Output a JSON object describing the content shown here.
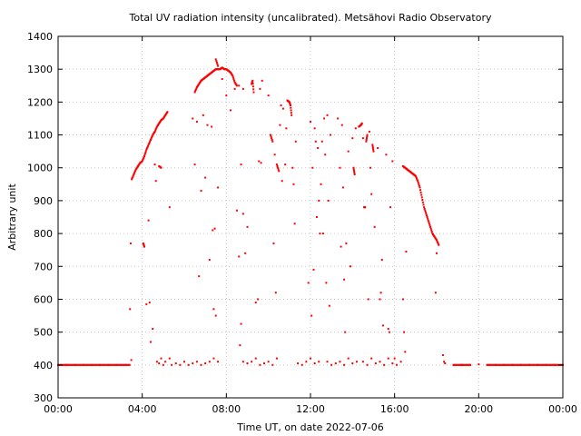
{
  "chart_data": {
    "type": "scatter",
    "title": "Total UV radiation intensity (uncalibrated). Metsähovi Radio Observatory",
    "xlabel": "Time UT, on date 2022-07-06",
    "ylabel": "Arbitrary unit",
    "xlim": [
      0,
      24
    ],
    "ylim": [
      300,
      1400
    ],
    "x_ticks": [
      {
        "value": 0,
        "label": "00:00"
      },
      {
        "value": 4,
        "label": "04:00"
      },
      {
        "value": 8,
        "label": "08:00"
      },
      {
        "value": 12,
        "label": "12:00"
      },
      {
        "value": 16,
        "label": "16:00"
      },
      {
        "value": 20,
        "label": "20:00"
      },
      {
        "value": 24,
        "label": "00:00"
      }
    ],
    "y_ticks": [
      {
        "value": 300,
        "label": "300"
      },
      {
        "value": 400,
        "label": "400"
      },
      {
        "value": 500,
        "label": "500"
      },
      {
        "value": 600,
        "label": "600"
      },
      {
        "value": 700,
        "label": "700"
      },
      {
        "value": 800,
        "label": "800"
      },
      {
        "value": 900,
        "label": "900"
      },
      {
        "value": 1000,
        "label": "1000"
      },
      {
        "value": 1100,
        "label": "1100"
      },
      {
        "value": 1200,
        "label": "1200"
      },
      {
        "value": 1300,
        "label": "1300"
      },
      {
        "value": 1400,
        "label": "1400"
      }
    ],
    "grid": true,
    "marker_color": "#ff0000",
    "series": [
      {
        "points": [
          [
            0.0,
            400
          ],
          [
            0.4,
            400
          ],
          [
            0.8,
            400
          ],
          [
            1.2,
            400
          ],
          [
            1.6,
            400
          ],
          [
            2.0,
            400
          ],
          [
            2.4,
            400
          ],
          [
            2.8,
            400
          ],
          [
            3.2,
            400
          ],
          [
            3.4,
            400
          ],
          [
            3.45,
            770
          ],
          [
            3.42,
            570
          ],
          [
            3.48,
            415
          ],
          [
            3.5,
            965
          ],
          [
            3.6,
            980
          ],
          [
            3.7,
            995
          ],
          [
            3.8,
            1005
          ],
          [
            3.9,
            1015
          ],
          [
            4.0,
            1020
          ],
          [
            4.1,
            1035
          ],
          [
            4.2,
            1055
          ],
          [
            4.3,
            1070
          ],
          [
            4.4,
            1085
          ],
          [
            4.5,
            1100
          ],
          [
            4.6,
            1110
          ],
          [
            4.7,
            1125
          ],
          [
            4.8,
            1135
          ],
          [
            4.9,
            1145
          ],
          [
            5.0,
            1150
          ],
          [
            5.1,
            1160
          ],
          [
            5.2,
            1170
          ],
          [
            4.05,
            770
          ],
          [
            4.1,
            760
          ],
          [
            4.2,
            585
          ],
          [
            4.3,
            840
          ],
          [
            4.35,
            590
          ],
          [
            4.4,
            470
          ],
          [
            4.5,
            510
          ],
          [
            4.6,
            1010
          ],
          [
            4.65,
            960
          ],
          [
            4.8,
            1005
          ],
          [
            4.9,
            1000
          ],
          [
            5.3,
            880
          ],
          [
            4.7,
            410
          ],
          [
            4.8,
            405
          ],
          [
            4.9,
            420
          ],
          [
            5.0,
            400
          ],
          [
            5.1,
            410
          ],
          [
            5.3,
            420
          ],
          [
            5.4,
            400
          ],
          [
            5.6,
            405
          ],
          [
            5.8,
            400
          ],
          [
            6.0,
            410
          ],
          [
            6.2,
            400
          ],
          [
            6.4,
            405
          ],
          [
            6.6,
            410
          ],
          [
            6.8,
            400
          ],
          [
            7.0,
            405
          ],
          [
            7.2,
            410
          ],
          [
            7.4,
            420
          ],
          [
            7.6,
            410
          ],
          [
            6.4,
            1150
          ],
          [
            6.5,
            1010
          ],
          [
            6.6,
            1140
          ],
          [
            6.7,
            670
          ],
          [
            6.8,
            930
          ],
          [
            6.9,
            1160
          ],
          [
            7.0,
            970
          ],
          [
            7.1,
            1130
          ],
          [
            7.2,
            720
          ],
          [
            7.3,
            1125
          ],
          [
            7.35,
            810
          ],
          [
            7.4,
            570
          ],
          [
            7.5,
            550
          ],
          [
            7.45,
            815
          ],
          [
            7.6,
            940
          ],
          [
            6.5,
            1230
          ],
          [
            6.6,
            1245
          ],
          [
            6.7,
            1255
          ],
          [
            6.8,
            1265
          ],
          [
            6.9,
            1270
          ],
          [
            7.0,
            1275
          ],
          [
            7.1,
            1280
          ],
          [
            7.2,
            1285
          ],
          [
            7.3,
            1290
          ],
          [
            7.4,
            1295
          ],
          [
            7.5,
            1300
          ],
          [
            7.6,
            1300
          ],
          [
            7.7,
            1300
          ],
          [
            7.8,
            1305
          ],
          [
            7.9,
            1300
          ],
          [
            8.0,
            1300
          ],
          [
            8.1,
            1295
          ],
          [
            8.2,
            1290
          ],
          [
            8.3,
            1280
          ],
          [
            8.4,
            1260
          ],
          [
            8.5,
            1250
          ],
          [
            7.5,
            1330
          ],
          [
            7.6,
            1310
          ],
          [
            7.8,
            1270
          ],
          [
            8.0,
            1220
          ],
          [
            8.2,
            1175
          ],
          [
            8.4,
            1240
          ],
          [
            8.6,
            1250
          ],
          [
            8.7,
            1010
          ],
          [
            8.8,
            1240
          ],
          [
            8.5,
            870
          ],
          [
            8.6,
            730
          ],
          [
            8.7,
            525
          ],
          [
            8.8,
            860
          ],
          [
            8.9,
            740
          ],
          [
            9.0,
            820
          ],
          [
            8.65,
            460
          ],
          [
            8.8,
            410
          ],
          [
            9.0,
            405
          ],
          [
            9.2,
            410
          ],
          [
            9.4,
            420
          ],
          [
            9.6,
            400
          ],
          [
            9.8,
            405
          ],
          [
            10.0,
            410
          ],
          [
            10.2,
            400
          ],
          [
            10.4,
            420
          ],
          [
            9.2,
            1255
          ],
          [
            9.25,
            1265
          ],
          [
            9.3,
            1230
          ],
          [
            9.4,
            590
          ],
          [
            9.5,
            600
          ],
          [
            9.55,
            1020
          ],
          [
            9.6,
            1240
          ],
          [
            9.65,
            1015
          ],
          [
            9.7,
            1265
          ],
          [
            10.0,
            1220
          ],
          [
            10.1,
            1100
          ],
          [
            10.2,
            1080
          ],
          [
            10.25,
            770
          ],
          [
            10.3,
            1040
          ],
          [
            10.35,
            620
          ],
          [
            10.4,
            1010
          ],
          [
            10.5,
            990
          ],
          [
            10.55,
            1130
          ],
          [
            10.6,
            1190
          ],
          [
            10.65,
            960
          ],
          [
            10.7,
            1180
          ],
          [
            10.8,
            1010
          ],
          [
            10.85,
            1120
          ],
          [
            10.9,
            1205
          ],
          [
            11.0,
            1200
          ],
          [
            11.05,
            1190
          ],
          [
            11.1,
            1160
          ],
          [
            11.15,
            1000
          ],
          [
            11.2,
            950
          ],
          [
            11.25,
            830
          ],
          [
            11.3,
            1080
          ],
          [
            11.4,
            405
          ],
          [
            11.6,
            400
          ],
          [
            11.8,
            410
          ],
          [
            12.0,
            420
          ],
          [
            12.2,
            405
          ],
          [
            12.4,
            410
          ],
          [
            11.9,
            650
          ],
          [
            12.0,
            1140
          ],
          [
            12.05,
            550
          ],
          [
            12.1,
            1000
          ],
          [
            12.15,
            690
          ],
          [
            12.2,
            1120
          ],
          [
            12.25,
            1080
          ],
          [
            12.3,
            850
          ],
          [
            12.35,
            1060
          ],
          [
            12.4,
            900
          ],
          [
            12.45,
            800
          ],
          [
            12.5,
            950
          ],
          [
            12.55,
            1080
          ],
          [
            12.6,
            800
          ],
          [
            12.65,
            1150
          ],
          [
            12.7,
            1040
          ],
          [
            12.75,
            650
          ],
          [
            12.8,
            1160
          ],
          [
            12.85,
            900
          ],
          [
            12.9,
            580
          ],
          [
            12.95,
            1100
          ],
          [
            12.8,
            410
          ],
          [
            13.0,
            400
          ],
          [
            13.2,
            405
          ],
          [
            13.4,
            410
          ],
          [
            13.6,
            400
          ],
          [
            13.8,
            420
          ],
          [
            14.0,
            405
          ],
          [
            14.2,
            410
          ],
          [
            13.3,
            1150
          ],
          [
            13.4,
            1000
          ],
          [
            13.45,
            760
          ],
          [
            13.5,
            1130
          ],
          [
            13.55,
            940
          ],
          [
            13.6,
            660
          ],
          [
            13.65,
            500
          ],
          [
            13.7,
            770
          ],
          [
            13.8,
            1050
          ],
          [
            13.9,
            700
          ],
          [
            14.0,
            1090
          ],
          [
            14.05,
            1000
          ],
          [
            14.1,
            980
          ],
          [
            14.15,
            1120
          ],
          [
            14.3,
            1125
          ],
          [
            14.4,
            1130
          ],
          [
            14.45,
            1135
          ],
          [
            14.5,
            1090
          ],
          [
            14.55,
            880
          ],
          [
            14.6,
            880
          ],
          [
            14.65,
            1080
          ],
          [
            14.7,
            1100
          ],
          [
            14.75,
            600
          ],
          [
            14.8,
            1110
          ],
          [
            14.85,
            1000
          ],
          [
            14.9,
            920
          ],
          [
            14.95,
            1070
          ],
          [
            15.0,
            1050
          ],
          [
            15.05,
            820
          ],
          [
            14.5,
            410
          ],
          [
            14.7,
            400
          ],
          [
            14.9,
            420
          ],
          [
            15.1,
            405
          ],
          [
            15.3,
            410
          ],
          [
            15.5,
            400
          ],
          [
            15.7,
            420
          ],
          [
            15.9,
            405
          ],
          [
            16.1,
            400
          ],
          [
            16.3,
            410
          ],
          [
            15.2,
            1060
          ],
          [
            15.3,
            600
          ],
          [
            15.35,
            620
          ],
          [
            15.4,
            720
          ],
          [
            15.45,
            520
          ],
          [
            15.6,
            1040
          ],
          [
            15.7,
            510
          ],
          [
            15.75,
            500
          ],
          [
            15.8,
            880
          ],
          [
            15.9,
            1020
          ],
          [
            16.0,
            420
          ],
          [
            16.4,
            600
          ],
          [
            16.45,
            500
          ],
          [
            16.5,
            440
          ],
          [
            16.55,
            745
          ],
          [
            16.4,
            1005
          ],
          [
            16.5,
            1000
          ],
          [
            16.6,
            995
          ],
          [
            16.7,
            990
          ],
          [
            16.8,
            985
          ],
          [
            16.9,
            980
          ],
          [
            17.0,
            975
          ],
          [
            17.1,
            960
          ],
          [
            17.2,
            940
          ],
          [
            17.3,
            910
          ],
          [
            17.4,
            880
          ],
          [
            17.5,
            860
          ],
          [
            17.6,
            840
          ],
          [
            17.7,
            820
          ],
          [
            17.8,
            800
          ],
          [
            17.9,
            790
          ],
          [
            18.0,
            780
          ],
          [
            18.1,
            765
          ],
          [
            17.95,
            620
          ],
          [
            18.0,
            740
          ],
          [
            18.3,
            430
          ],
          [
            18.35,
            410
          ],
          [
            18.4,
            405
          ],
          [
            18.8,
            400
          ],
          [
            19.2,
            400
          ],
          [
            19.6,
            400
          ],
          [
            20.0,
            402
          ],
          [
            20.4,
            400
          ],
          [
            20.8,
            400
          ],
          [
            21.2,
            400
          ],
          [
            21.6,
            400
          ],
          [
            22.0,
            400
          ],
          [
            22.4,
            400
          ],
          [
            22.8,
            400
          ],
          [
            23.2,
            400
          ],
          [
            23.6,
            400
          ],
          [
            24.0,
            400
          ]
        ]
      }
    ]
  }
}
